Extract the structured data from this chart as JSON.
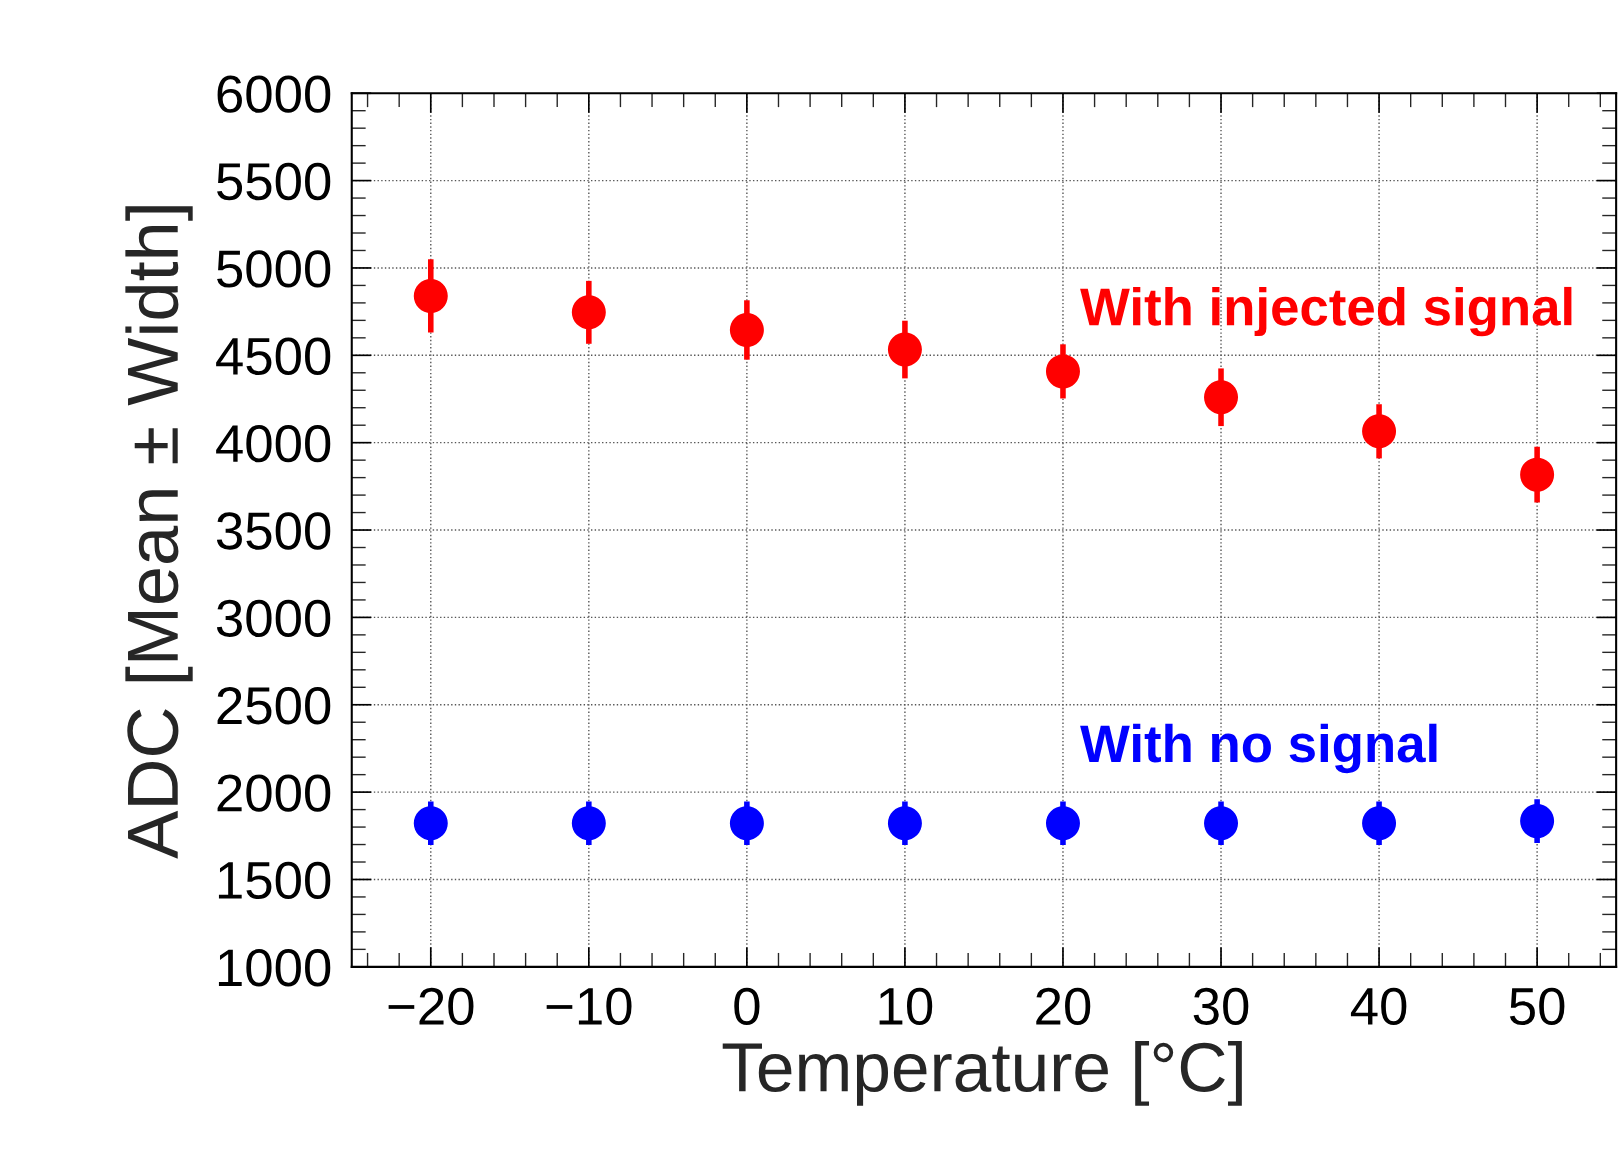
{
  "chart_data": {
    "type": "scatter",
    "xlabel": "Temperature [°C]",
    "ylabel": "ADC [Mean ± Width]",
    "x": [
      -20,
      -10,
      0,
      10,
      20,
      30,
      40,
      50
    ],
    "series": [
      {
        "color": "#ff0000",
        "values": [
          4840,
          4746,
          4645,
          4533,
          4408,
          4260,
          4065,
          3817
        ],
        "errors": [
          210,
          180,
          170,
          165,
          155,
          165,
          155,
          160
        ]
      },
      {
        "color": "#0000ff",
        "values": [
          1822,
          1822,
          1822,
          1822,
          1822,
          1822,
          1822,
          1834
        ],
        "errors": [
          125,
          125,
          125,
          125,
          125,
          125,
          125,
          125
        ]
      }
    ],
    "annotations": [
      "With injected signal",
      "With no signal"
    ],
    "xlim": [
      -25,
      55
    ],
    "ylim": [
      1000,
      6000
    ],
    "xticks": [
      {
        "value": -20,
        "label": "−20"
      },
      {
        "value": -10,
        "label": "−10"
      },
      0,
      10,
      20,
      30,
      40,
      50
    ],
    "yticks": [
      1000,
      1500,
      2000,
      2500,
      3000,
      3500,
      4000,
      4500,
      5000,
      5500,
      6000
    ],
    "grid": true,
    "marker": "circle",
    "legend": false
  }
}
